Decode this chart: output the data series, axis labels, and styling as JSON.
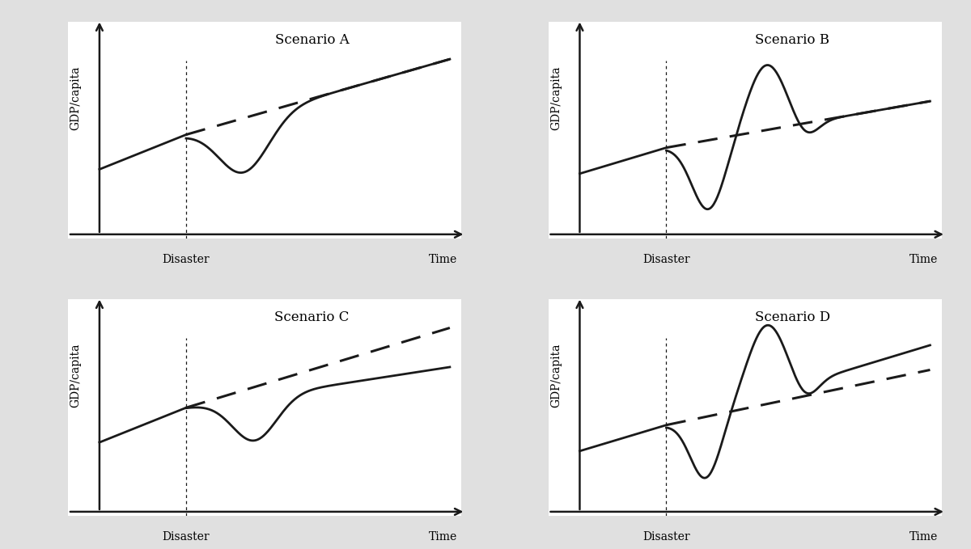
{
  "scenarios": [
    "Scenario A",
    "Scenario B",
    "Scenario C",
    "Scenario D"
  ],
  "background_color": "#e0e0e0",
  "plot_bg": "#ffffff",
  "line_color": "#1a1a1a",
  "title_fontsize": 12,
  "label_fontsize": 10,
  "ylabel": "GDP/capita",
  "xlabel_disaster": "Disaster",
  "xlabel_time": "Time",
  "disaster_x": 3.0,
  "xlim": [
    0,
    10
  ],
  "ylim": [
    0,
    10
  ]
}
